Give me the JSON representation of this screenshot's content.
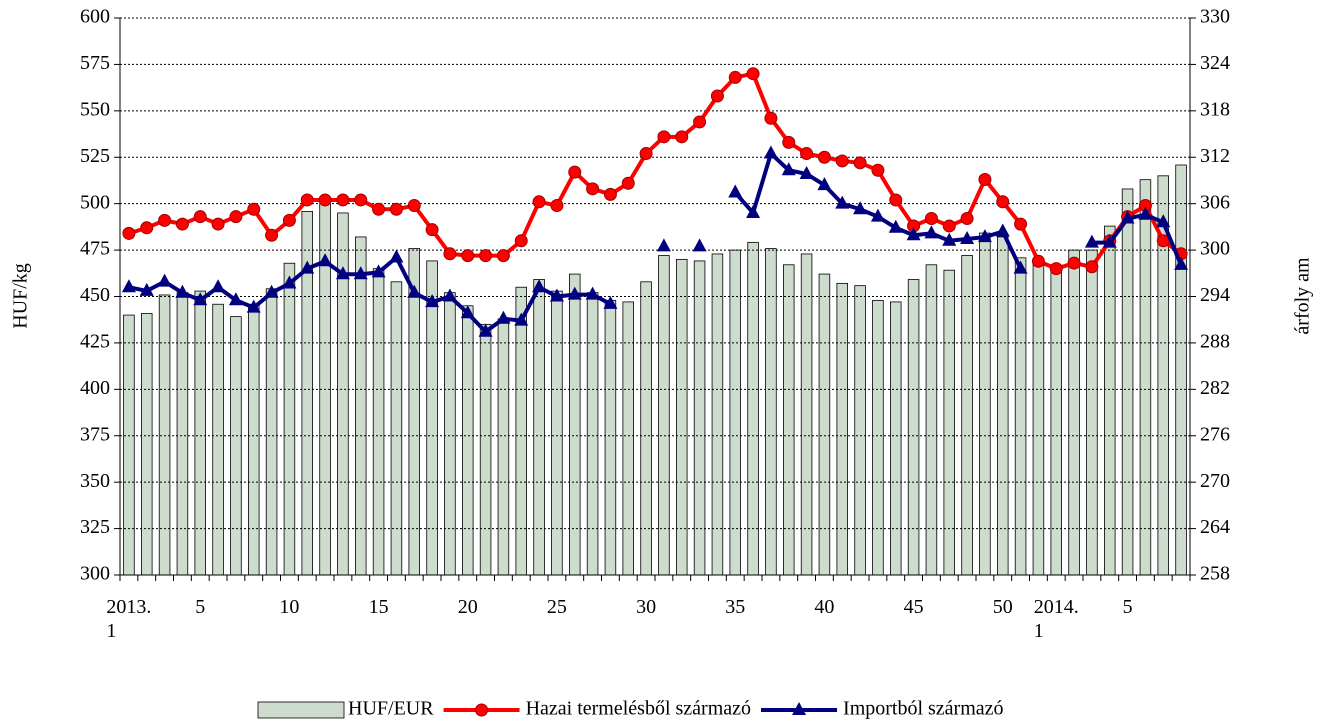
{
  "chart_data": {
    "type": "combo",
    "y_label": "HUF/kg",
    "y2_label": "árfoly am",
    "categories": [
      "2013.\n1",
      null,
      null,
      null,
      "5",
      null,
      null,
      null,
      null,
      "10",
      null,
      null,
      null,
      null,
      "15",
      null,
      null,
      null,
      null,
      "20",
      null,
      null,
      null,
      null,
      "25",
      null,
      null,
      null,
      null,
      "30",
      null,
      null,
      null,
      null,
      "35",
      null,
      null,
      null,
      null,
      "40",
      null,
      null,
      null,
      null,
      "45",
      null,
      null,
      null,
      null,
      "50",
      null,
      null,
      "2014.\n1",
      null,
      null,
      null,
      "5",
      null,
      null,
      null
    ],
    "ylim": [
      300,
      600
    ],
    "yticks": [
      300,
      325,
      350,
      375,
      400,
      425,
      450,
      475,
      500,
      525,
      550,
      575,
      600
    ],
    "y2lim": [
      258,
      330
    ],
    "y2ticks": [
      258,
      264,
      270,
      276,
      282,
      288,
      294,
      300,
      306,
      312,
      318,
      324,
      330
    ],
    "grid": true,
    "legend": "bottom",
    "series": [
      {
        "name": "HUF/EUR",
        "type": "bar",
        "axis": "y2",
        "color": "#cddccd",
        "values": [
          291.6,
          291.8,
          294.2,
          294.5,
          294.7,
          293.0,
          291.4,
          293.0,
          295.0,
          298.3,
          305.0,
          306.0,
          304.8,
          301.7,
          297.6,
          295.9,
          300.2,
          298.6,
          294.5,
          292.8,
          290.4,
          291.1,
          295.2,
          296.2,
          294.7,
          296.9,
          294.5,
          293.5,
          293.3,
          295.9,
          299.3,
          298.8,
          298.6,
          299.5,
          300.0,
          301.0,
          300.2,
          298.1,
          299.5,
          296.9,
          295.7,
          295.4,
          293.5,
          293.3,
          296.2,
          298.1,
          297.4,
          299.3,
          302.2,
          301.7,
          299.0,
          298.6,
          297.6,
          300.0,
          300.0,
          303.1,
          307.9,
          309.1,
          309.6,
          311.0
        ]
      },
      {
        "name": "Hazai termelésből származó",
        "type": "line",
        "marker": "circle",
        "color": "#ff0000",
        "values": [
          484,
          487,
          491,
          489,
          493,
          489,
          493,
          497,
          483,
          491,
          502,
          502,
          502,
          502,
          497,
          497,
          499,
          486,
          473,
          472,
          472,
          472,
          480,
          501,
          499,
          517,
          508,
          505,
          511,
          527,
          536,
          536,
          544,
          558,
          568,
          570,
          546,
          533,
          527,
          525,
          523,
          522,
          518,
          502,
          488,
          492,
          488,
          492,
          513,
          501,
          489,
          469,
          465,
          468,
          466,
          480,
          493,
          499,
          480,
          473
        ]
      },
      {
        "name": "Importból származó",
        "type": "line",
        "marker": "triangle",
        "color": "#000080",
        "values": [
          455,
          453,
          458,
          452,
          448,
          455,
          448,
          444,
          452,
          457,
          465,
          469,
          462,
          462,
          463,
          471,
          452,
          447,
          450,
          441,
          431,
          438,
          437,
          455,
          450,
          451,
          451,
          446,
          null,
          null,
          477,
          null,
          477,
          null,
          506,
          495,
          527,
          518,
          516,
          510,
          500,
          497,
          493,
          487,
          483,
          484,
          480,
          481,
          482,
          485,
          465,
          null,
          null,
          null,
          479,
          479,
          492,
          494,
          490,
          467
        ]
      }
    ]
  }
}
